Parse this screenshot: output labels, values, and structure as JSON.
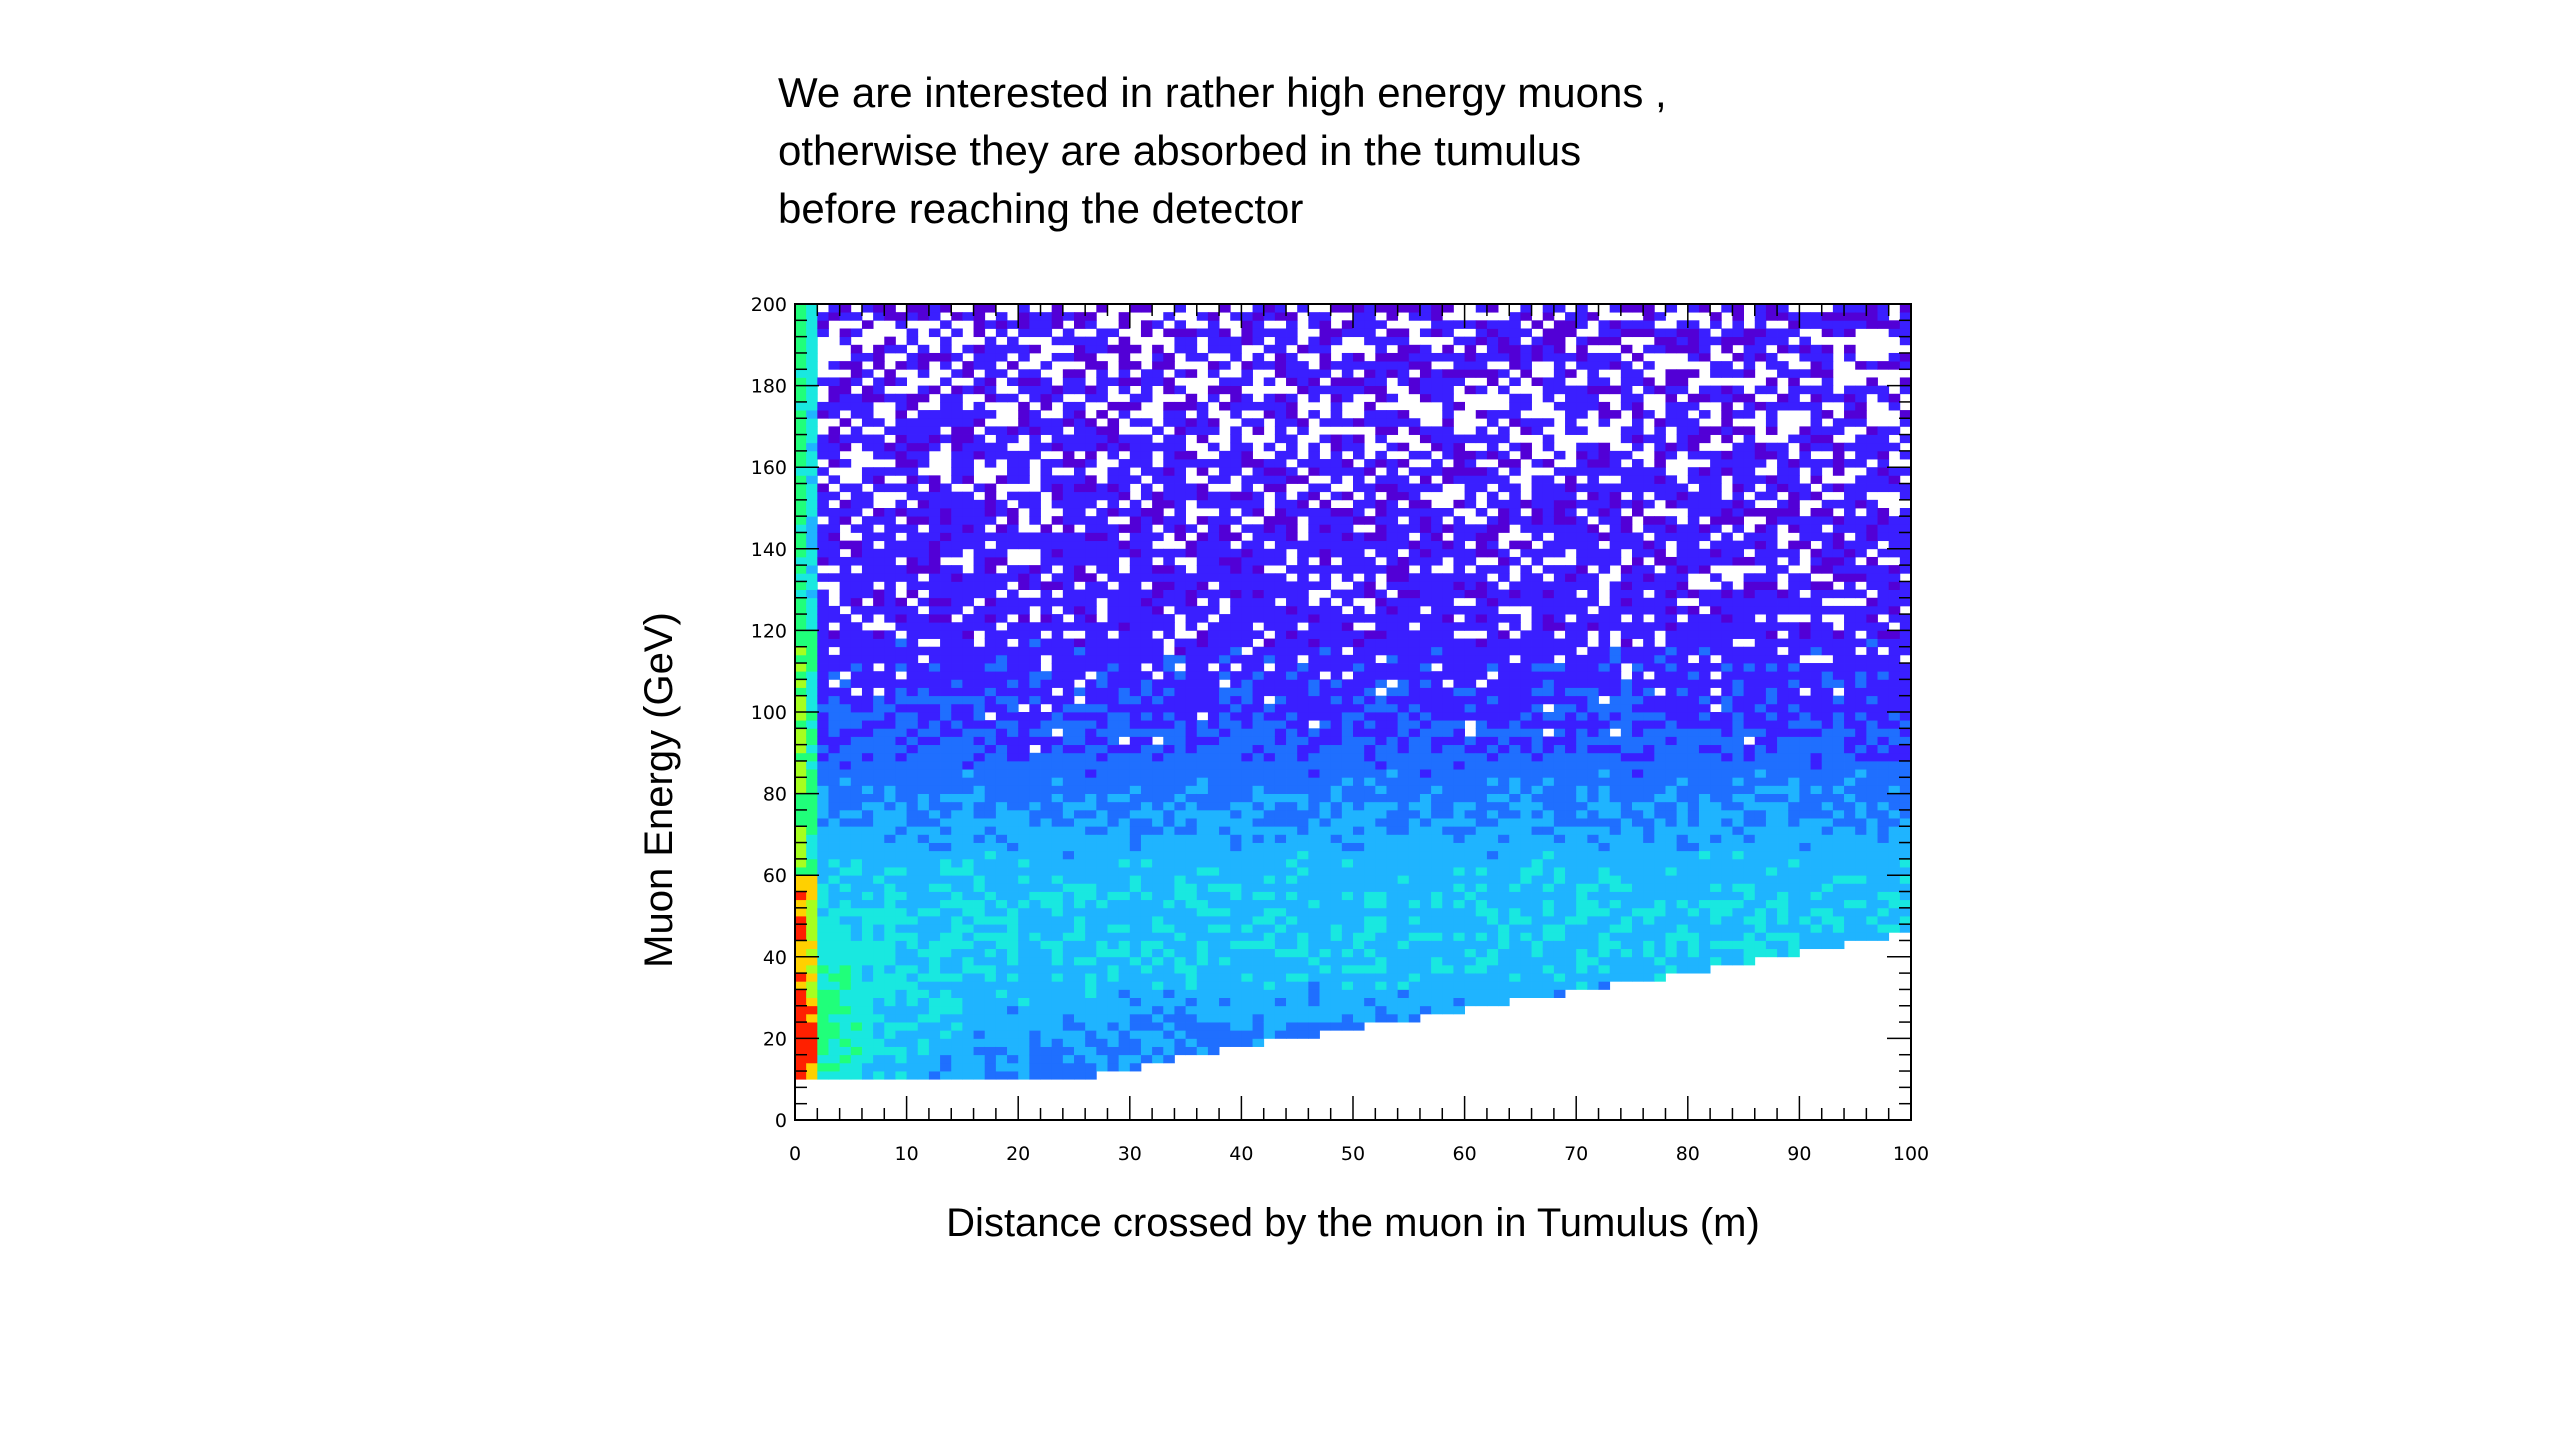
{
  "slide": {
    "note_lines": [
      "We are interested in rather  high energy muons ,",
      "otherwise they are absorbed in the tumulus",
      "before reaching the detector"
    ]
  },
  "chart_data": {
    "type": "heatmap",
    "title": "",
    "xlabel": "Distance crossed by the muon in Tumulus (m)",
    "ylabel": "Muon Energy (GeV)",
    "xlim": [
      0,
      100
    ],
    "ylim": [
      0,
      200
    ],
    "x_ticks": [
      "0",
      "10",
      "20",
      "30",
      "40",
      "50",
      "60",
      "70",
      "80",
      "90",
      "100"
    ],
    "y_ticks": [
      "0",
      "20",
      "40",
      "60",
      "80",
      "100",
      "120",
      "140",
      "160",
      "180",
      "200"
    ],
    "bins": {
      "x": 100,
      "y": 100
    },
    "energy_threshold_gev": 10,
    "min_energy_vs_distance": [
      [
        0,
        10
      ],
      [
        25,
        10
      ],
      [
        40,
        18
      ],
      [
        60,
        27
      ],
      [
        80,
        36
      ],
      [
        100,
        46
      ]
    ],
    "hotspot": {
      "x_range": [
        0,
        2
      ],
      "y_range": [
        10,
        40
      ]
    },
    "colormap": [
      "#5200d6",
      "#3a1fff",
      "#1f6fff",
      "#1fb4ff",
      "#19e8e0",
      "#20ff7a",
      "#a6ff1f",
      "#ffd000",
      "#ff2000"
    ],
    "grid": false,
    "legend": "none"
  }
}
